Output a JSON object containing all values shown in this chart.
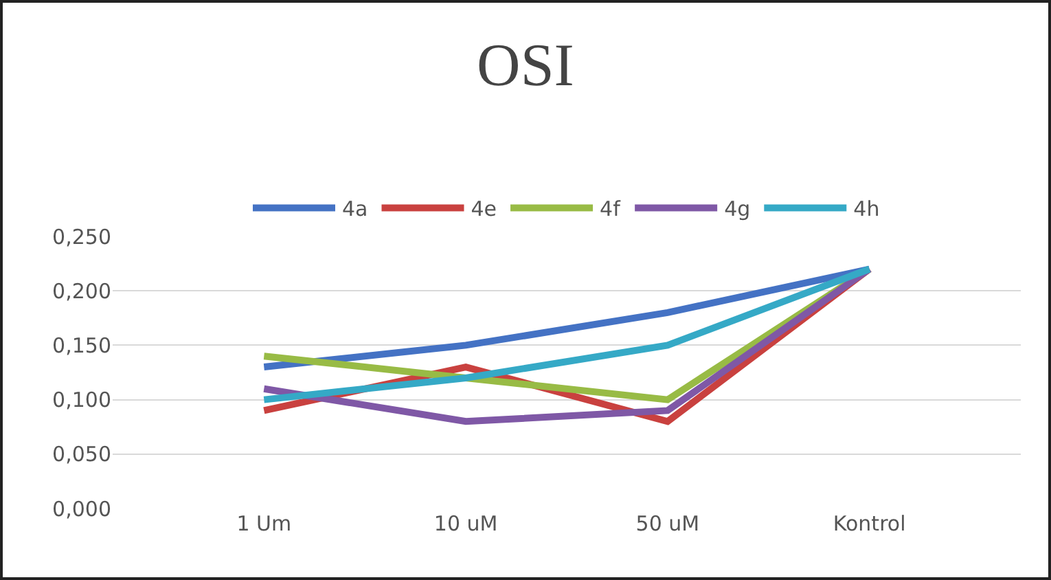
{
  "chart_data": {
    "type": "line",
    "title": "OSI",
    "categories": [
      "1 Um",
      "10 uM",
      "50 uM",
      "Kontrol"
    ],
    "series": [
      {
        "name": "4a",
        "color": "#4472c4",
        "values": [
          0.13,
          0.15,
          0.18,
          0.22
        ]
      },
      {
        "name": "4e",
        "color": "#c9413f",
        "values": [
          0.09,
          0.13,
          0.08,
          0.22
        ]
      },
      {
        "name": "4f",
        "color": "#98bb45",
        "values": [
          0.14,
          0.12,
          0.1,
          0.22
        ]
      },
      {
        "name": "4g",
        "color": "#7f58a6",
        "values": [
          0.11,
          0.08,
          0.09,
          0.22
        ]
      },
      {
        "name": "4h",
        "color": "#35a9c6",
        "values": [
          0.1,
          0.12,
          0.15,
          0.22
        ]
      }
    ],
    "ylim": [
      0,
      0.25
    ],
    "yticks": [
      {
        "value": 0,
        "label": "0,000"
      },
      {
        "value": 0.05,
        "label": "0,050"
      },
      {
        "value": 0.1,
        "label": "0,100"
      },
      {
        "value": 0.15,
        "label": "0,150"
      },
      {
        "value": 0.2,
        "label": "0,200"
      },
      {
        "value": 0.25,
        "label": "0,250"
      }
    ],
    "grid": "y",
    "legend": "top",
    "marker": "none",
    "line_style": "solid"
  }
}
